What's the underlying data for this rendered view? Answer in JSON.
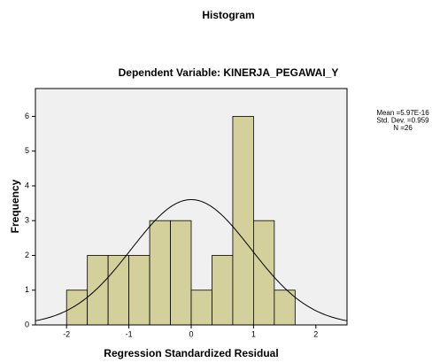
{
  "chart_data": {
    "type": "histogram",
    "title": "Histogram",
    "subtitle": "Dependent Variable: KINERJA_PEGAWAI_Y",
    "xlabel": "Regression Standardized Residual",
    "ylabel": "Frequency",
    "bins": [
      -2,
      -1.6667,
      -1.3333,
      -1,
      -0.6667,
      -0.3333,
      0,
      0.3333,
      0.6667,
      1,
      1.3333,
      1.6667
    ],
    "counts": [
      1,
      2,
      2,
      2,
      3,
      3,
      1,
      2,
      6,
      3,
      1
    ],
    "color": "#d4d09c",
    "xlim": [
      -2.5,
      2.5
    ],
    "xticks": [
      -2,
      -1,
      0,
      1,
      2
    ],
    "ylim": [
      0,
      6.8
    ],
    "yticks": [
      0,
      1,
      2,
      3,
      4,
      5,
      6
    ],
    "grid": false,
    "stats": [
      {
        "value": 5.97e-16,
        "label": "Mean =5.97E-16"
      },
      {
        "value": 0.959,
        "label": "Std. Dev. =0.959"
      },
      {
        "value": 26,
        "label": "N =26"
      }
    ]
  }
}
